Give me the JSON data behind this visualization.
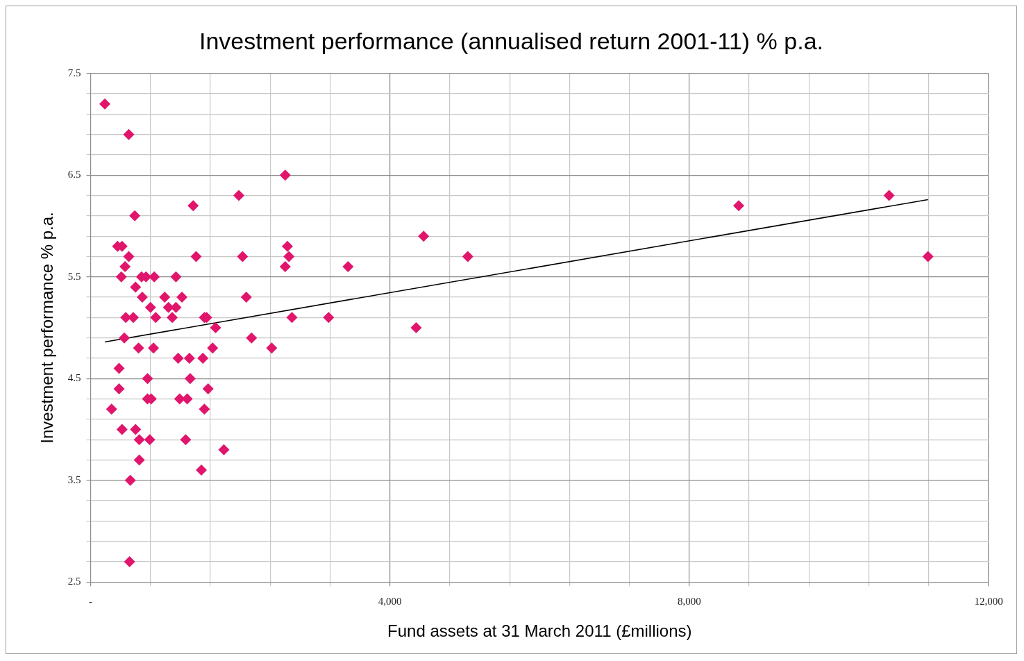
{
  "chart_data": {
    "type": "scatter",
    "title": "Investment performance (annualised return 2001-11) % p.a.",
    "xlabel": "Fund assets at 31 March 2011 (£millions)",
    "ylabel": "Investment performance % p.a.",
    "xlim": [
      0,
      12000
    ],
    "xticks": [
      {
        "value": 0,
        "label": "-"
      },
      {
        "value": 800,
        "label": null
      },
      {
        "value": 1600,
        "label": null
      },
      {
        "value": 2400,
        "label": null
      },
      {
        "value": 3200,
        "label": null
      },
      {
        "value": 4000,
        "label": "4,000"
      },
      {
        "value": 4800,
        "label": null
      },
      {
        "value": 5600,
        "label": null
      },
      {
        "value": 6400,
        "label": null
      },
      {
        "value": 7200,
        "label": null
      },
      {
        "value": 8000,
        "label": "8,000"
      },
      {
        "value": 8800,
        "label": null
      },
      {
        "value": 9600,
        "label": null
      },
      {
        "value": 10400,
        "label": null
      },
      {
        "value": 11200,
        "label": null
      },
      {
        "value": 12000,
        "label": "12,000"
      }
    ],
    "ylim": [
      2.5,
      7.5
    ],
    "yticks": [
      2.5,
      {
        "value": 2.7,
        "label": null
      },
      {
        "value": 2.9,
        "label": null
      },
      {
        "value": 3.1,
        "label": null
      },
      {
        "value": 3.3,
        "label": null
      },
      3.5,
      {
        "value": 3.7,
        "label": null
      },
      {
        "value": 3.9,
        "label": null
      },
      {
        "value": 4.1,
        "label": null
      },
      {
        "value": 4.3,
        "label": null
      },
      4.5,
      {
        "value": 4.7,
        "label": null
      },
      {
        "value": 4.9,
        "label": null
      },
      {
        "value": 5.1,
        "label": null
      },
      {
        "value": 5.3,
        "label": null
      },
      5.5,
      {
        "value": 5.7,
        "label": null
      },
      {
        "value": 5.9,
        "label": null
      },
      {
        "value": 6.1,
        "label": null
      },
      {
        "value": 6.3,
        "label": null
      },
      6.5,
      {
        "value": 6.7,
        "label": null
      },
      {
        "value": 6.9,
        "label": null
      },
      {
        "value": 7.1,
        "label": null
      },
      {
        "value": 7.3,
        "label": null
      },
      7.5
    ],
    "grid": true,
    "series": [
      {
        "type": "scatter",
        "marker": "diamond",
        "color": "#e0156b",
        "x": [
          190,
          510,
          590,
          1370,
          1980,
          2600,
          360,
          420,
          2630,
          510,
          1410,
          2030,
          2650,
          460,
          2600,
          410,
          680,
          740,
          850,
          1140,
          600,
          690,
          990,
          1220,
          2080,
          800,
          1040,
          1140,
          470,
          570,
          870,
          1090,
          1520,
          1550,
          2690,
          3180,
          1670,
          4350,
          450,
          2150,
          640,
          840,
          1630,
          2420,
          1170,
          1320,
          1500,
          380,
          760,
          1330,
          380,
          1570,
          760,
          810,
          1190,
          1290,
          280,
          1520,
          420,
          600,
          650,
          790,
          1270,
          1780,
          650,
          1480,
          530,
          520,
          4450,
          5040,
          3440,
          8660,
          10670,
          11190
        ],
        "values": [
          7.2,
          6.9,
          6.1,
          6.2,
          6.3,
          6.5,
          5.8,
          5.8,
          5.8,
          5.7,
          5.7,
          5.7,
          5.7,
          5.6,
          5.6,
          5.5,
          5.5,
          5.5,
          5.5,
          5.5,
          5.4,
          5.3,
          5.3,
          5.3,
          5.3,
          5.2,
          5.2,
          5.2,
          5.1,
          5.1,
          5.1,
          5.1,
          5.1,
          5.1,
          5.1,
          5.1,
          5.0,
          5.0,
          4.9,
          4.9,
          4.8,
          4.8,
          4.8,
          4.8,
          4.7,
          4.7,
          4.7,
          4.6,
          4.5,
          4.5,
          4.4,
          4.4,
          4.3,
          4.3,
          4.3,
          4.3,
          4.2,
          4.2,
          4.0,
          4.0,
          3.9,
          3.9,
          3.9,
          3.8,
          3.7,
          3.6,
          3.5,
          2.7,
          5.9,
          5.7,
          5.6,
          6.2,
          6.3,
          5.7
        ]
      },
      {
        "type": "line",
        "marker": "none",
        "color": "#000000",
        "x": [
          190,
          11190
        ],
        "values": [
          4.86,
          6.26
        ]
      }
    ]
  }
}
